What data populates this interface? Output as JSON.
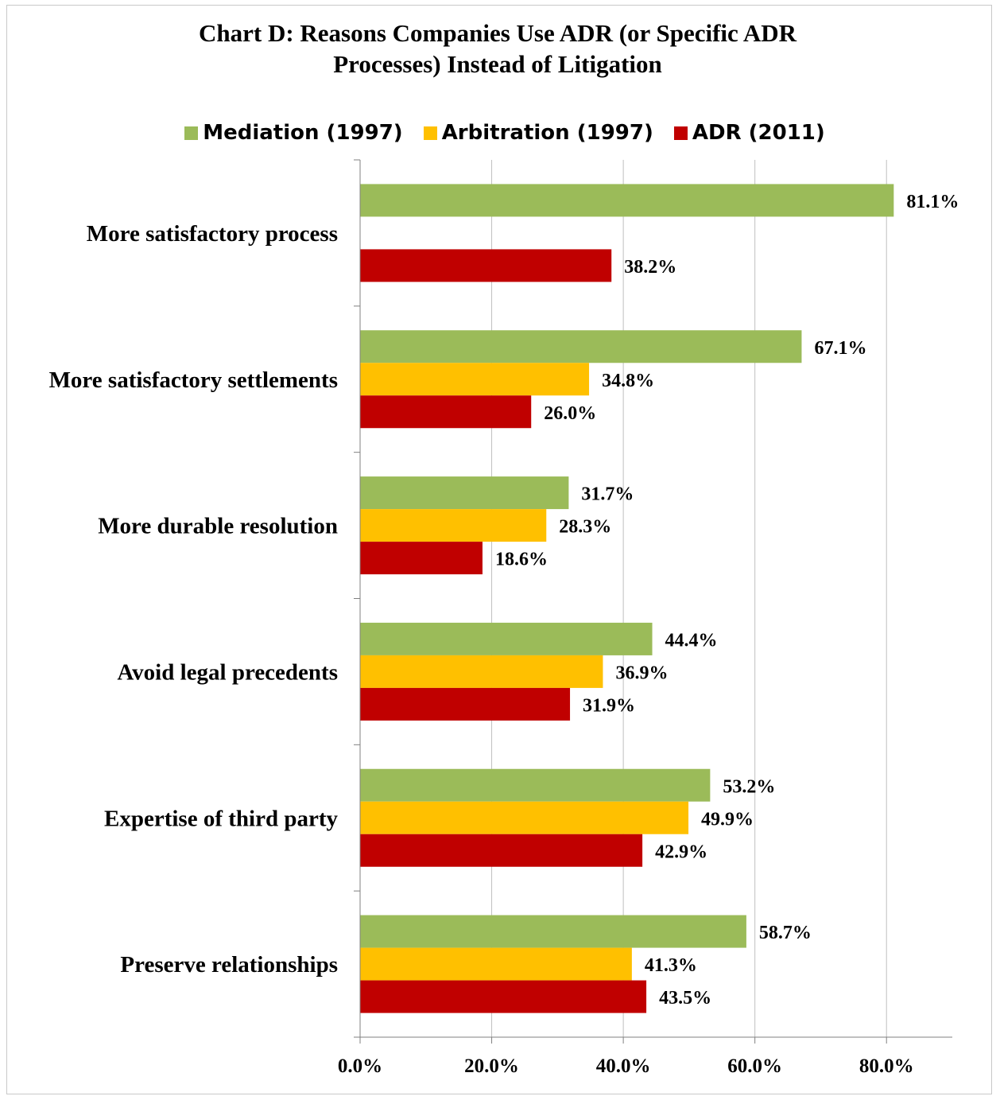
{
  "chart_data": {
    "type": "bar",
    "orientation": "horizontal",
    "title_lines": [
      "Chart D:  Reasons Companies Use ADR (or Specific ADR",
      "Processes) Instead of Litigation"
    ],
    "categories": [
      "More satisfactory process",
      "More satisfactory settlements",
      "More durable resolution",
      "Avoid legal precedents",
      "Expertise of third party",
      "Preserve relationships"
    ],
    "series": [
      {
        "name": "Mediation (1997)",
        "color": "#9BBB59",
        "values": [
          81.1,
          67.1,
          31.7,
          44.4,
          53.2,
          58.7
        ],
        "labels": [
          "81.1%",
          "67.1%",
          "31.7%",
          "44.4%",
          "53.2%",
          "58.7%"
        ]
      },
      {
        "name": "Arbitration (1997)",
        "color": "#FFC000",
        "values": [
          null,
          34.8,
          28.3,
          36.9,
          49.9,
          41.3
        ],
        "labels": [
          null,
          "34.8%",
          "28.3%",
          "36.9%",
          "49.9%",
          "41.3%"
        ]
      },
      {
        "name": "ADR (2011)",
        "color": "#C00000",
        "values": [
          38.2,
          26.0,
          18.6,
          31.9,
          42.9,
          43.5
        ],
        "labels": [
          "38.2%",
          "26.0%",
          "18.6%",
          "31.9%",
          "42.9%",
          "43.5%"
        ]
      }
    ],
    "xlim": [
      0,
      90
    ],
    "xticks": [
      0,
      20,
      40,
      60,
      80
    ],
    "xtick_labels": [
      "0.0%",
      "20.0%",
      "40.0%",
      "60.0%",
      "80.0%"
    ],
    "grid": true,
    "legend_position": "top"
  }
}
